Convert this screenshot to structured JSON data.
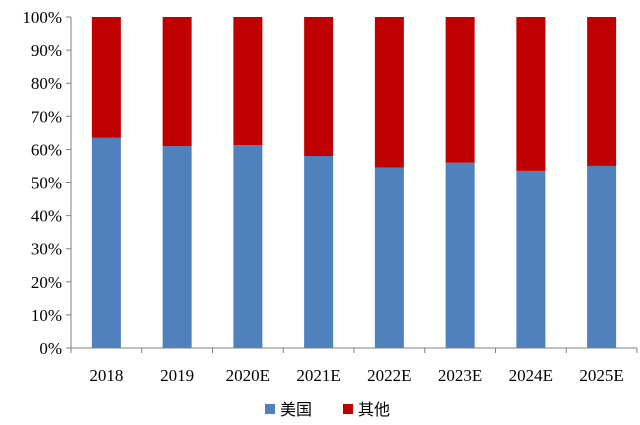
{
  "chart_data": {
    "type": "bar",
    "stacked": true,
    "categories": [
      "2018",
      "2019",
      "2020E",
      "2021E",
      "2022E",
      "2023E",
      "2024E",
      "2025E"
    ],
    "series": [
      {
        "name": "美国",
        "color": "#4F81BD",
        "values": [
          63.5,
          61,
          61.3,
          58,
          54.5,
          56,
          53.5,
          55
        ]
      },
      {
        "name": "其他",
        "color": "#C00000",
        "values": [
          36.5,
          39,
          38.7,
          42,
          45.5,
          44,
          46.5,
          45
        ]
      }
    ],
    "yticks": [
      "0%",
      "10%",
      "20%",
      "30%",
      "40%",
      "50%",
      "60%",
      "70%",
      "80%",
      "90%",
      "100%"
    ],
    "ylim": [
      0,
      100
    ],
    "grid": false,
    "legend": "bottom",
    "title": "",
    "xlabel": "",
    "ylabel": ""
  }
}
